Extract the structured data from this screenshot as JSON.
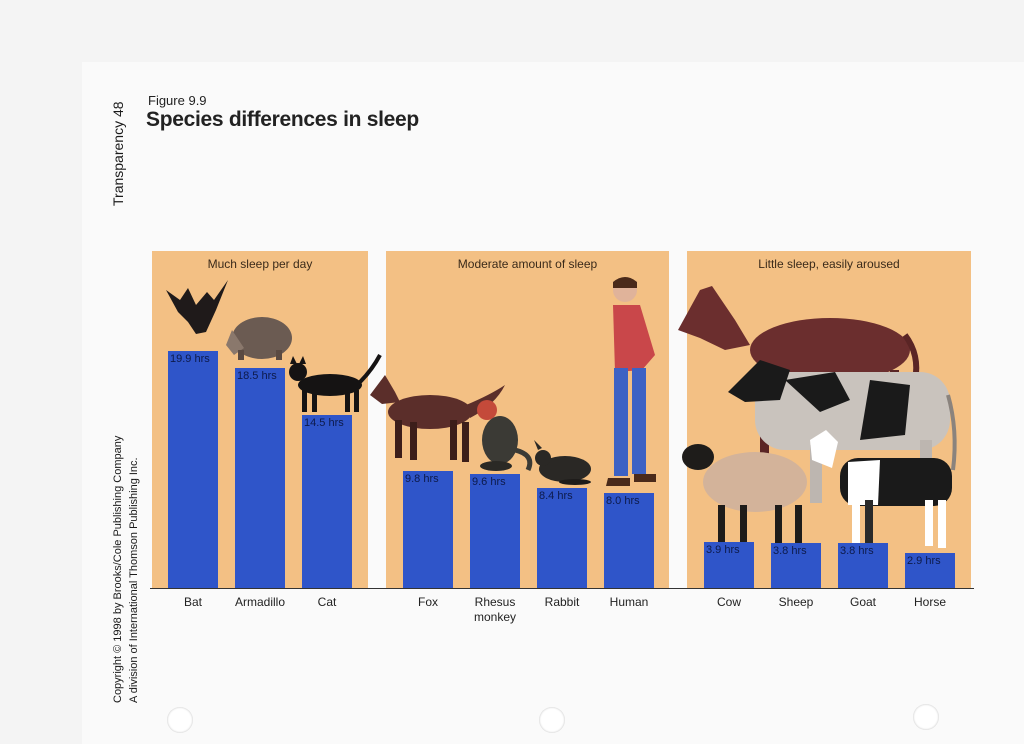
{
  "sheet": {
    "transparency_label": "Transparency 48",
    "figure_number": "Figure 9.9",
    "figure_title": "Species differences in sleep",
    "copyright_line1": "Copyright © 1998 by Brooks/Cole Publishing Company",
    "copyright_line2": "A division of International Thomson Publishing Inc."
  },
  "chart_data": {
    "type": "bar",
    "title": "Species differences in sleep",
    "xlabel": "",
    "ylabel": "",
    "unit": "hrs",
    "ylim": [
      0,
      20
    ],
    "groups": [
      {
        "label": "Much sleep per day",
        "categories": [
          "Bat",
          "Armadillo",
          "Cat"
        ]
      },
      {
        "label": "Moderate amount of sleep",
        "categories": [
          "Fox",
          "Rhesus monkey",
          "Rabbit",
          "Human"
        ]
      },
      {
        "label": "Little sleep, easily aroused",
        "categories": [
          "Cow",
          "Sheep",
          "Goat",
          "Horse"
        ]
      }
    ],
    "categories": [
      "Bat",
      "Armadillo",
      "Cat",
      "Fox",
      "Rhesus monkey",
      "Rabbit",
      "Human",
      "Cow",
      "Sheep",
      "Goat",
      "Horse"
    ],
    "values": [
      19.9,
      18.5,
      14.5,
      9.8,
      9.6,
      8.4,
      8.0,
      3.9,
      3.8,
      3.8,
      2.9
    ],
    "value_labels": [
      "19.9 hrs",
      "18.5 hrs",
      "14.5 hrs",
      "9.8 hrs",
      "9.6 hrs",
      "8.4 hrs",
      "8.0 hrs",
      "3.9 hrs",
      "3.8 hrs",
      "3.8 hrs",
      "2.9 hrs"
    ],
    "colors": {
      "bar": "#2f55c9",
      "panel": "#f3c084",
      "value_text": "#0d1a4a"
    },
    "grid": false,
    "legend": "none"
  }
}
